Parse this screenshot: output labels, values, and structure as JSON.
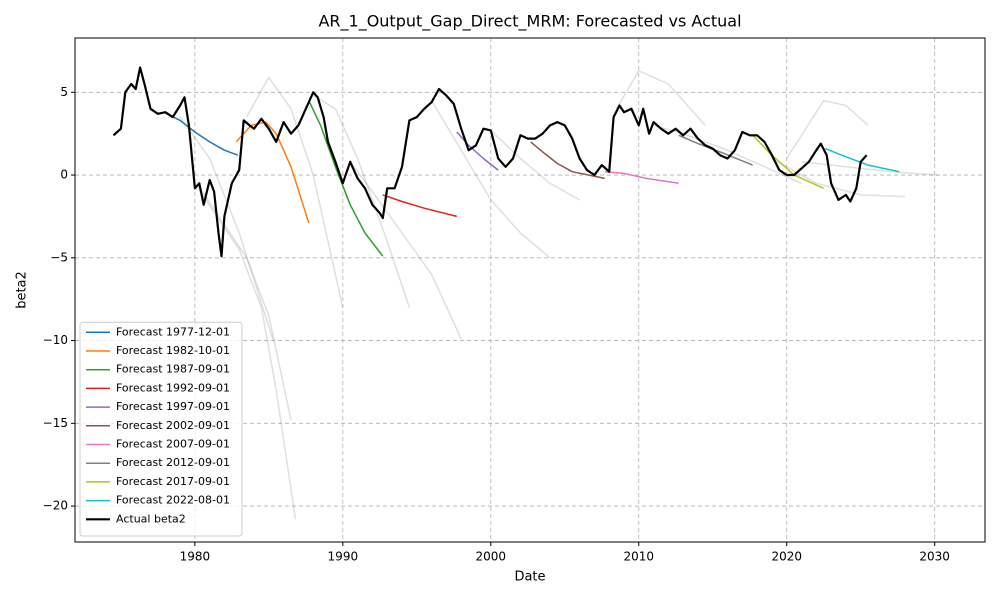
{
  "chart_data": {
    "type": "line",
    "title": "AR_1_Output_Gap_Direct_MRM: Forecasted vs Actual",
    "x_label": "Date",
    "y_label": "beta2",
    "xlim": [
      1971.9,
      2033.4
    ],
    "ylim": [
      -22.17,
      8.28
    ],
    "xticks": [
      1980,
      1990,
      2000,
      2010,
      2020,
      2030
    ],
    "yticks": [
      {
        "value": -20,
        "label": "−20"
      },
      {
        "value": -15,
        "label": "−15"
      },
      {
        "value": -10,
        "label": "−10"
      },
      {
        "value": -5,
        "label": "−5"
      },
      0,
      5
    ],
    "grid": true,
    "legend": "lower left",
    "series": [
      {
        "color": "#808080",
        "opacity": 0.25,
        "x": [
          1980,
          1981.5,
          1983,
          1984.5,
          1985.5,
          1986.8
        ],
        "values": [
          -0.5,
          -2.5,
          -4.5,
          -8,
          -13,
          -20.8
        ]
      },
      {
        "color": "#808080",
        "opacity": 0.25,
        "x": [
          1980.5,
          1982,
          1983.5,
          1985,
          1986.5
        ],
        "values": [
          -1,
          -3,
          -5,
          -8.5,
          -14.8
        ]
      },
      {
        "color": "#808080",
        "opacity": 0.25,
        "x": [
          1979,
          1981,
          1983,
          1985.3
        ],
        "values": [
          3.5,
          1,
          -3.5,
          -10
        ]
      },
      {
        "color": "#808080",
        "opacity": 0.25,
        "x": [
          1983.5,
          1985,
          1986.5,
          1988,
          1990
        ],
        "values": [
          3.5,
          5.9,
          4,
          0,
          -8
        ]
      },
      {
        "color": "#808080",
        "opacity": 0.25,
        "x": [
          1988,
          1989.5,
          1991,
          1993,
          1994.5
        ],
        "values": [
          4.8,
          4,
          1,
          -4,
          -8
        ]
      },
      {
        "color": "#808080",
        "opacity": 0.25,
        "x": [
          1990.5,
          1992,
          1994,
          1996,
          1998
        ],
        "values": [
          0.8,
          -1,
          -3.5,
          -6,
          -9.9
        ]
      },
      {
        "color": "#808080",
        "opacity": 0.25,
        "x": [
          1996,
          1998,
          2000,
          2002,
          2004
        ],
        "values": [
          4.5,
          1.5,
          -1.5,
          -3.5,
          -5
        ]
      },
      {
        "color": "#808080",
        "opacity": 0.25,
        "x": [
          2000,
          2002,
          2004,
          2006
        ],
        "values": [
          2.7,
          1,
          -0.5,
          -1.5
        ]
      },
      {
        "color": "#808080",
        "opacity": 0.25,
        "x": [
          2008.5,
          2010,
          2012,
          2014.5
        ],
        "values": [
          4,
          6.3,
          5.5,
          3
        ]
      },
      {
        "color": "#808080",
        "opacity": 0.25,
        "x": [
          2011,
          2013,
          2016,
          2019,
          2021
        ],
        "values": [
          3,
          2.5,
          1.5,
          0.3,
          -0.5
        ]
      },
      {
        "color": "#808080",
        "opacity": 0.25,
        "x": [
          2020,
          2022.5,
          2024,
          2025.5
        ],
        "values": [
          1,
          4.5,
          4.2,
          3
        ]
      },
      {
        "color": "#808080",
        "opacity": 0.25,
        "x": [
          2021,
          2024,
          2027,
          2030.2
        ],
        "values": [
          0.8,
          0.5,
          0.2,
          0
        ]
      },
      {
        "color": "#808080",
        "opacity": 0.25,
        "x": [
          2019,
          2022,
          2025,
          2028
        ],
        "values": [
          1,
          -0.5,
          -1.2,
          -1.3
        ]
      },
      {
        "name": "Forecast 1977-12-01",
        "color": "#1f77b4",
        "x": [
          1977.9,
          1979,
          1980,
          1981,
          1982,
          1982.9
        ],
        "values": [
          3.8,
          3.3,
          2.6,
          2,
          1.5,
          1.2
        ]
      },
      {
        "name": "Forecast 1982-10-01",
        "color": "#ff7f0e",
        "x": [
          1982.8,
          1983.8,
          1984.8,
          1985.5,
          1986.5,
          1987.7
        ],
        "values": [
          2,
          3,
          3.2,
          2.5,
          0.5,
          -2.9
        ]
      },
      {
        "name": "Forecast 1987-09-01",
        "color": "#2ca02c",
        "x": [
          1987.7,
          1988.5,
          1989.5,
          1990.5,
          1991.5,
          1992.7
        ],
        "values": [
          4.5,
          3,
          0.5,
          -1.8,
          -3.5,
          -4.9
        ]
      },
      {
        "name": "Forecast 1992-09-01",
        "color": "#d62728",
        "x": [
          1992.7,
          1994,
          1995.5,
          1997.7
        ],
        "values": [
          -1.2,
          -1.6,
          -2,
          -2.5
        ]
      },
      {
        "name": "Forecast 1997-09-01",
        "color": "#9467bd",
        "x": [
          1997.7,
          1998.5,
          1999.5,
          2000.5
        ],
        "values": [
          2.6,
          1.8,
          1,
          0.3
        ]
      },
      {
        "name": "Forecast 2002-09-01",
        "color": "#8c564b",
        "x": [
          2002.7,
          2003.5,
          2004.5,
          2005.5,
          2007.7
        ],
        "values": [
          2,
          1.4,
          0.7,
          0.2,
          -0.2
        ]
      },
      {
        "name": "Forecast 2007-09-01",
        "color": "#e377c2",
        "x": [
          2007.7,
          2009,
          2010.5,
          2012.7
        ],
        "values": [
          0.2,
          0.1,
          -0.2,
          -0.5
        ]
      },
      {
        "name": "Forecast 2012-09-01",
        "color": "#7f7f7f",
        "x": [
          2012.7,
          2014,
          2015.5,
          2017.7
        ],
        "values": [
          2.4,
          1.9,
          1.4,
          0.6
        ]
      },
      {
        "name": "Forecast 2017-09-01",
        "color": "#bcbd22",
        "x": [
          2017.7,
          2019,
          2020.5,
          2022.5
        ],
        "values": [
          2.4,
          1.2,
          0,
          -0.8
        ]
      },
      {
        "name": "Forecast 2022-08-01",
        "color": "#17becf",
        "x": [
          2022.6,
          2024,
          2025.5,
          2027.6
        ],
        "values": [
          1.6,
          1.1,
          0.6,
          0.2
        ]
      },
      {
        "name": "Actual beta2",
        "color": "#000000",
        "linewidth": 2.2,
        "x": [
          1974.5,
          1975,
          1975.3,
          1975.7,
          1976,
          1976.3,
          1976.6,
          1977,
          1977.5,
          1978,
          1978.5,
          1979,
          1979.3,
          1979.6,
          1980,
          1980.3,
          1980.6,
          1981,
          1981.3,
          1981.6,
          1981.8,
          1982,
          1982.5,
          1983,
          1983.3,
          1983.7,
          1984,
          1984.5,
          1985,
          1985.5,
          1986,
          1986.5,
          1987,
          1987.5,
          1988,
          1988.3,
          1988.7,
          1989,
          1989.5,
          1990,
          1990.5,
          1991,
          1991.5,
          1992,
          1992.5,
          1992.7,
          1993,
          1993.5,
          1994,
          1994.5,
          1995,
          1995.5,
          1996,
          1996.5,
          1997,
          1997.5,
          1998,
          1998.5,
          1999,
          1999.5,
          2000,
          2000.5,
          2001,
          2001.5,
          2002,
          2002.5,
          2003,
          2003.5,
          2004,
          2004.5,
          2005,
          2005.5,
          2006,
          2006.5,
          2007,
          2007.5,
          2008,
          2008.3,
          2008.7,
          2009,
          2009.5,
          2010,
          2010.3,
          2010.7,
          2011,
          2011.5,
          2012,
          2012.5,
          2013,
          2013.5,
          2014,
          2014.5,
          2015,
          2015.5,
          2016,
          2016.5,
          2017,
          2017.5,
          2018,
          2018.5,
          2019,
          2019.5,
          2020,
          2020.5,
          2021,
          2021.5,
          2022,
          2022.3,
          2022.7,
          2023,
          2023.5,
          2024,
          2024.3,
          2024.7,
          2025,
          2025.4
        ],
        "values": [
          2.4,
          2.8,
          5,
          5.5,
          5.2,
          6.5,
          5.5,
          4,
          3.7,
          3.8,
          3.5,
          4.2,
          4.7,
          3,
          -0.8,
          -0.5,
          -1.8,
          -0.3,
          -1,
          -3.5,
          -4.9,
          -2.5,
          -0.5,
          0.3,
          3.3,
          3,
          2.8,
          3.4,
          2.8,
          2,
          3.2,
          2.5,
          3,
          4,
          5,
          4.7,
          3.5,
          2,
          0.8,
          -0.5,
          0.8,
          -0.2,
          -0.8,
          -1.8,
          -2.3,
          -2.6,
          -0.8,
          -0.8,
          0.5,
          3.3,
          3.5,
          4,
          4.4,
          5.2,
          4.8,
          4.3,
          2.8,
          1.5,
          1.8,
          2.8,
          2.7,
          1,
          0.5,
          1,
          2.4,
          2.2,
          2.2,
          2.5,
          3,
          3.2,
          3,
          2.2,
          1,
          0.3,
          0,
          0.6,
          0.2,
          3.5,
          4.2,
          3.8,
          4,
          3,
          4,
          2.5,
          3.2,
          2.8,
          2.5,
          2.8,
          2.4,
          2.8,
          2.2,
          1.8,
          1.6,
          1.2,
          1,
          1.5,
          2.6,
          2.4,
          2.4,
          2,
          1.2,
          0.3,
          0,
          0,
          0.4,
          0.8,
          1.5,
          1.9,
          1.2,
          -0.5,
          -1.5,
          -1.2,
          -1.6,
          -0.8,
          0.8,
          1.2
        ]
      }
    ]
  }
}
